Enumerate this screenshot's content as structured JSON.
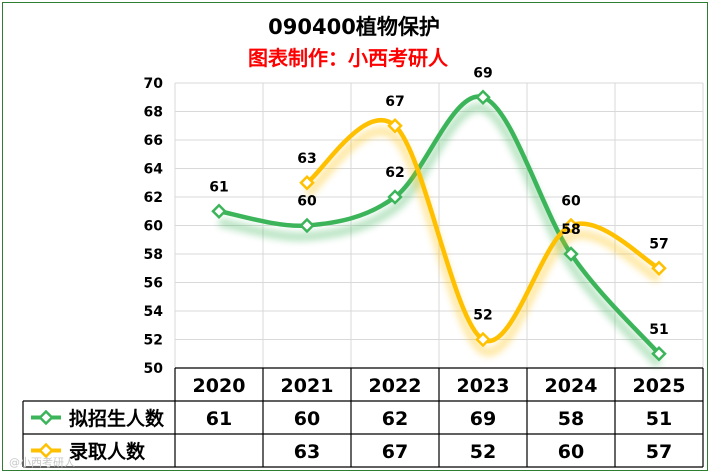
{
  "chart_data": {
    "type": "line",
    "title": "090400植物保护",
    "subtitle": "图表制作：小西考研人",
    "categories": [
      "2020",
      "2021",
      "2022",
      "2023",
      "2024",
      "2025"
    ],
    "ylim": [
      50,
      70
    ],
    "yticks": [
      50,
      52,
      54,
      56,
      58,
      60,
      62,
      64,
      66,
      68,
      70
    ],
    "grid": true,
    "series": [
      {
        "name": "拟招生人数",
        "color": "#3cb55a",
        "values": [
          61,
          60,
          62,
          69,
          58,
          51
        ]
      },
      {
        "name": "录取人数",
        "color": "#ffc000",
        "values": [
          null,
          63,
          67,
          52,
          60,
          57
        ]
      }
    ],
    "table": true
  },
  "watermark": "@小西考研人"
}
